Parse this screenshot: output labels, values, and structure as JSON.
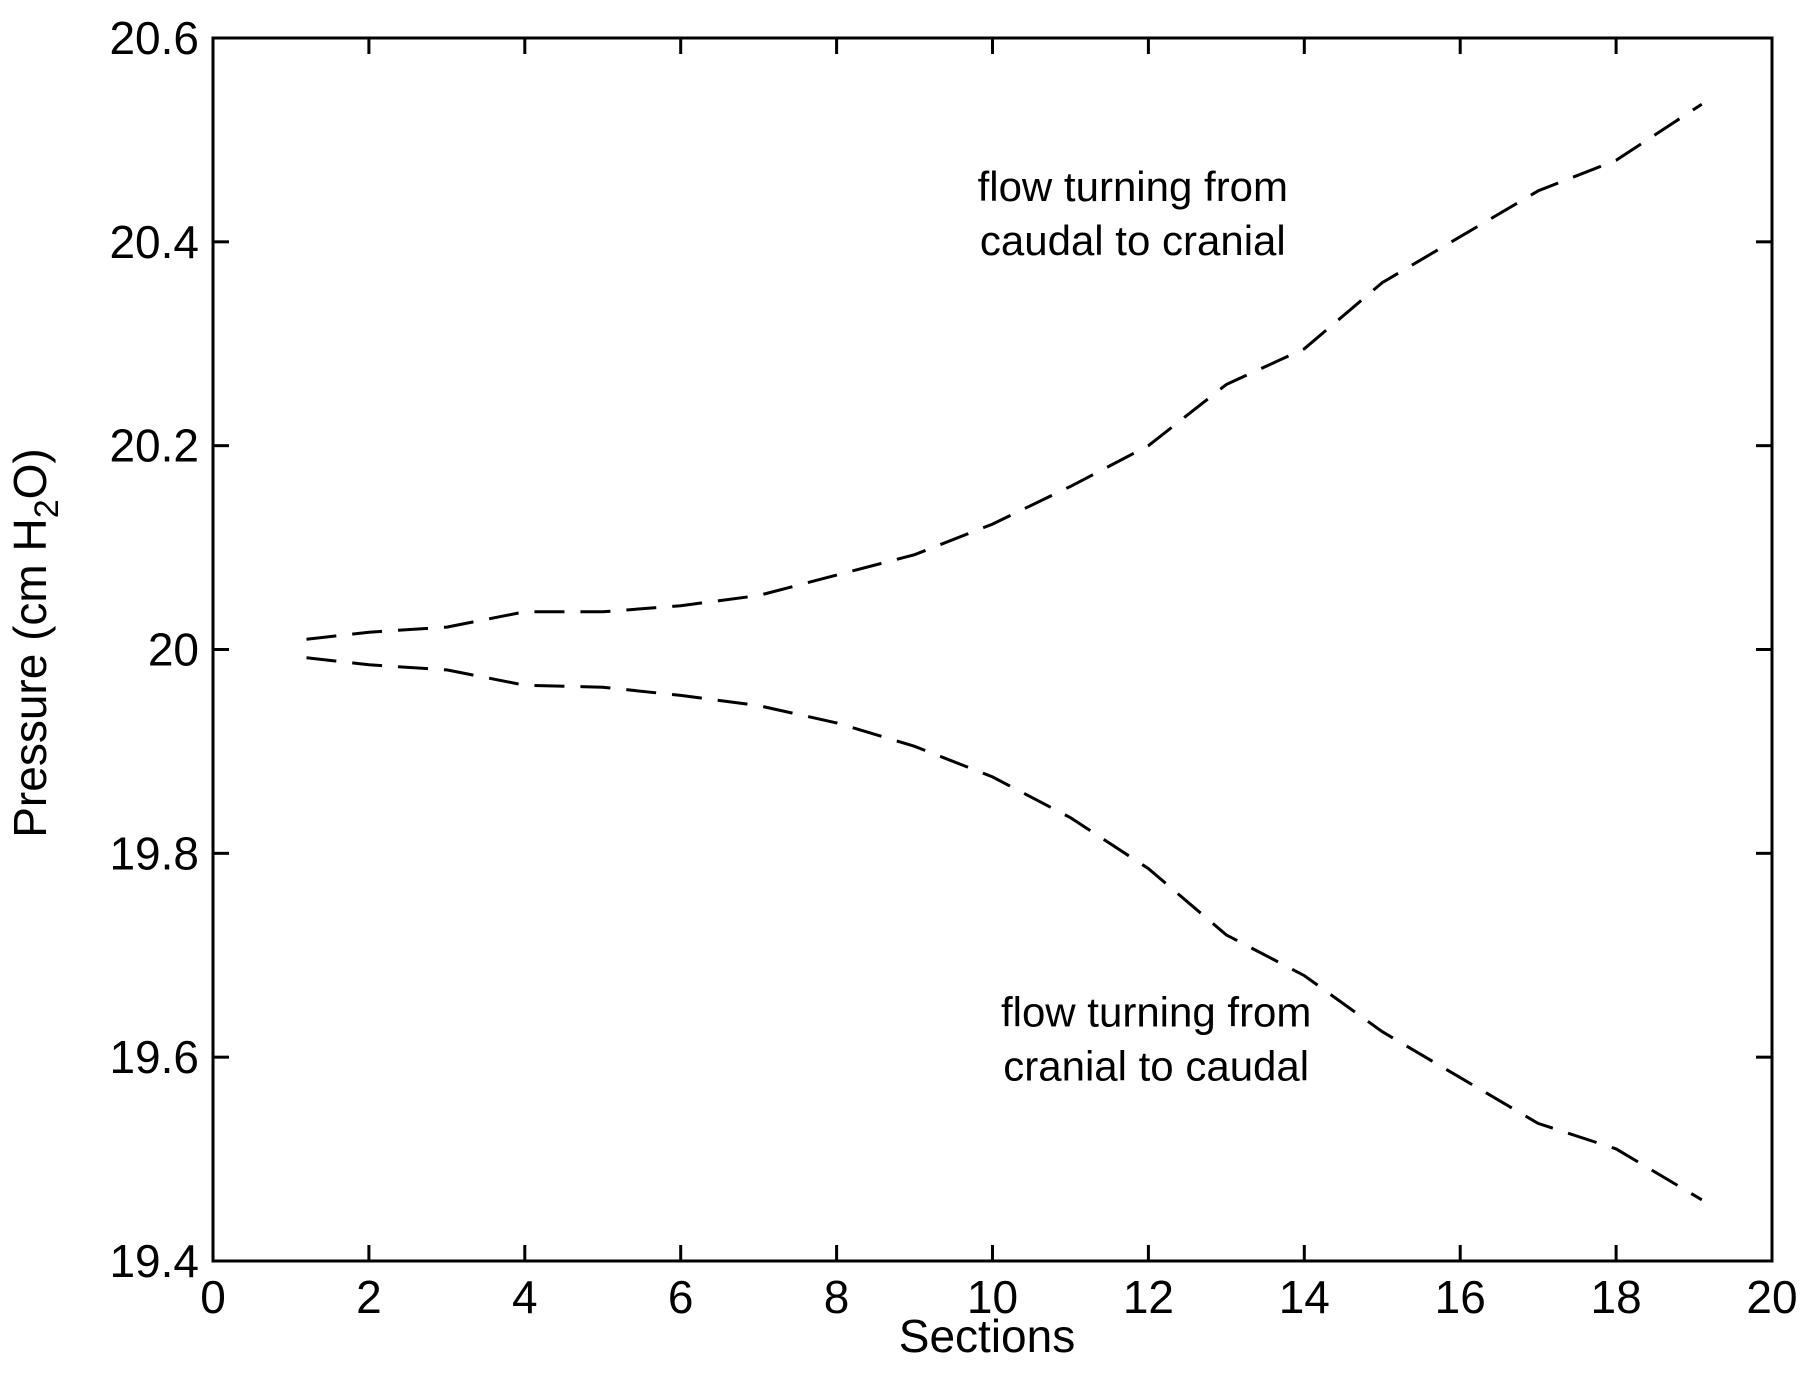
{
  "chart_data": {
    "type": "line",
    "xlabel": "Sections",
    "ylabel": {
      "prefix": "Pressure (cm H",
      "subscript": "2",
      "suffix": "O)"
    },
    "xlim": [
      0,
      20
    ],
    "ylim": [
      19.4,
      20.6
    ],
    "xticks": [
      "0",
      "2",
      "4",
      "6",
      "8",
      "10",
      "12",
      "14",
      "16",
      "18",
      "20"
    ],
    "yticks": [
      "19.4",
      "19.6",
      "19.8",
      "20",
      "20.2",
      "20.4",
      "20.6"
    ],
    "grid": false,
    "line_style": "dashed",
    "line_color": "#000000",
    "series": [
      {
        "x": [
          1.2,
          2,
          3,
          4,
          5,
          6,
          7,
          8,
          9,
          10,
          11,
          12,
          13,
          14,
          15,
          16,
          17,
          18,
          19.1
        ],
        "values": [
          20.01,
          20.017,
          20.022,
          20.037,
          20.037,
          20.043,
          20.053,
          20.073,
          20.093,
          20.123,
          20.16,
          20.2,
          20.26,
          20.295,
          20.36,
          20.405,
          20.45,
          20.48,
          20.535
        ]
      },
      {
        "x": [
          1.2,
          2,
          3,
          4,
          5,
          6,
          7,
          8,
          9,
          10,
          11,
          12,
          13,
          14,
          15,
          16,
          17,
          18,
          19.1
        ],
        "values": [
          19.992,
          19.985,
          19.98,
          19.965,
          19.963,
          19.955,
          19.945,
          19.928,
          19.905,
          19.875,
          19.835,
          19.785,
          19.72,
          19.68,
          19.625,
          19.58,
          19.535,
          19.51,
          19.46
        ]
      }
    ],
    "annotations": [
      {
        "lines": [
          "flow turning from",
          "caudal to cranial"
        ],
        "x": 11.8,
        "y": 20.44
      },
      {
        "lines": [
          "flow turning from",
          "cranial to caudal"
        ],
        "x": 12.1,
        "y": 19.63
      }
    ]
  }
}
